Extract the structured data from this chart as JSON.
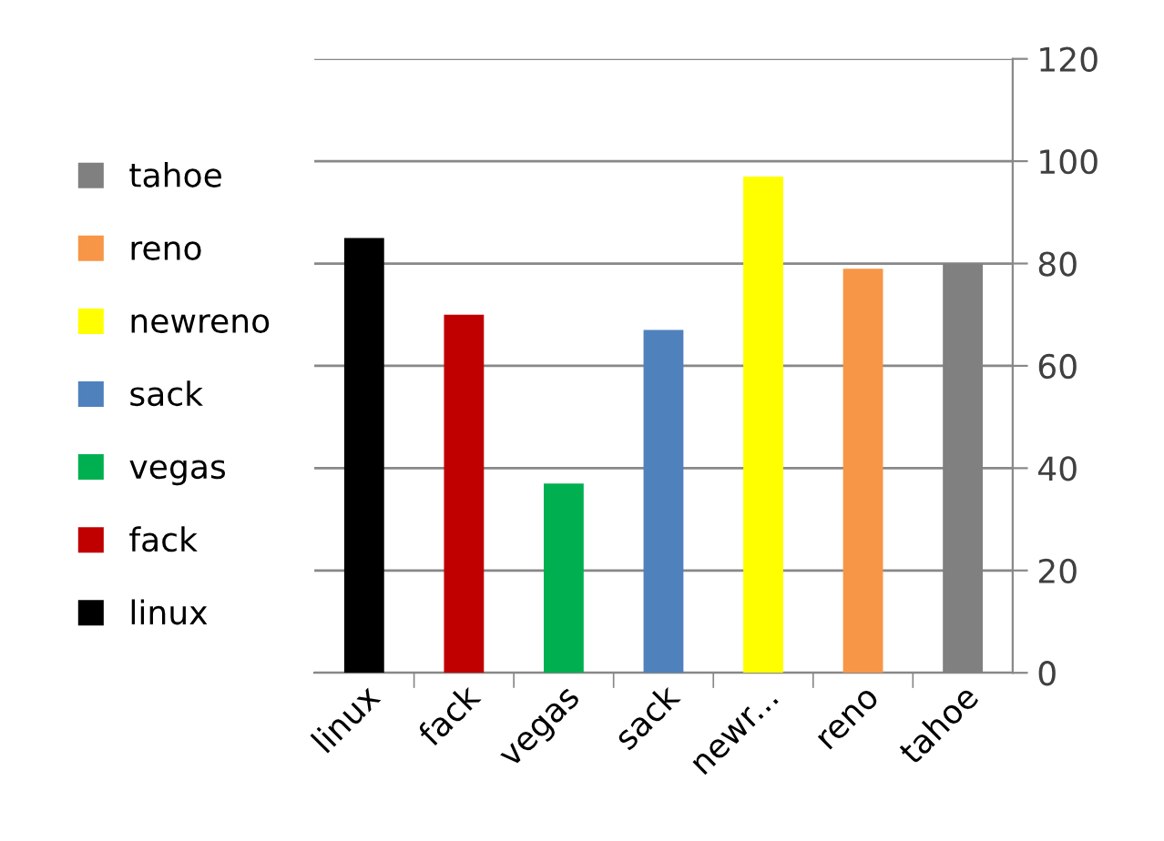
{
  "chart_data": {
    "type": "bar",
    "categories": [
      "linux",
      "fack",
      "vegas",
      "sack",
      "newr...",
      "reno",
      "tahoe"
    ],
    "series": [
      {
        "name": "linux",
        "color": "#000000",
        "values": [
          85,
          null,
          null,
          null,
          null,
          null,
          null
        ]
      },
      {
        "name": "fack",
        "color": "#c00000",
        "values": [
          null,
          70,
          null,
          null,
          null,
          null,
          null
        ]
      },
      {
        "name": "vegas",
        "color": "#00b050",
        "values": [
          null,
          null,
          37,
          null,
          null,
          null,
          null
        ]
      },
      {
        "name": "sack",
        "color": "#4f81bd",
        "values": [
          null,
          null,
          null,
          67,
          null,
          null,
          null
        ]
      },
      {
        "name": "newreno",
        "color": "#ffff00",
        "values": [
          null,
          null,
          null,
          null,
          97,
          null,
          null
        ]
      },
      {
        "name": "reno",
        "color": "#f79646",
        "values": [
          null,
          null,
          null,
          null,
          null,
          79,
          null
        ]
      },
      {
        "name": "tahoe",
        "color": "#808080",
        "values": [
          null,
          null,
          null,
          null,
          null,
          null,
          80
        ]
      }
    ],
    "ylim": [
      0,
      120
    ],
    "yticks": [
      0,
      20,
      40,
      60,
      80,
      100,
      120
    ],
    "grid": "y",
    "legend": "left"
  }
}
